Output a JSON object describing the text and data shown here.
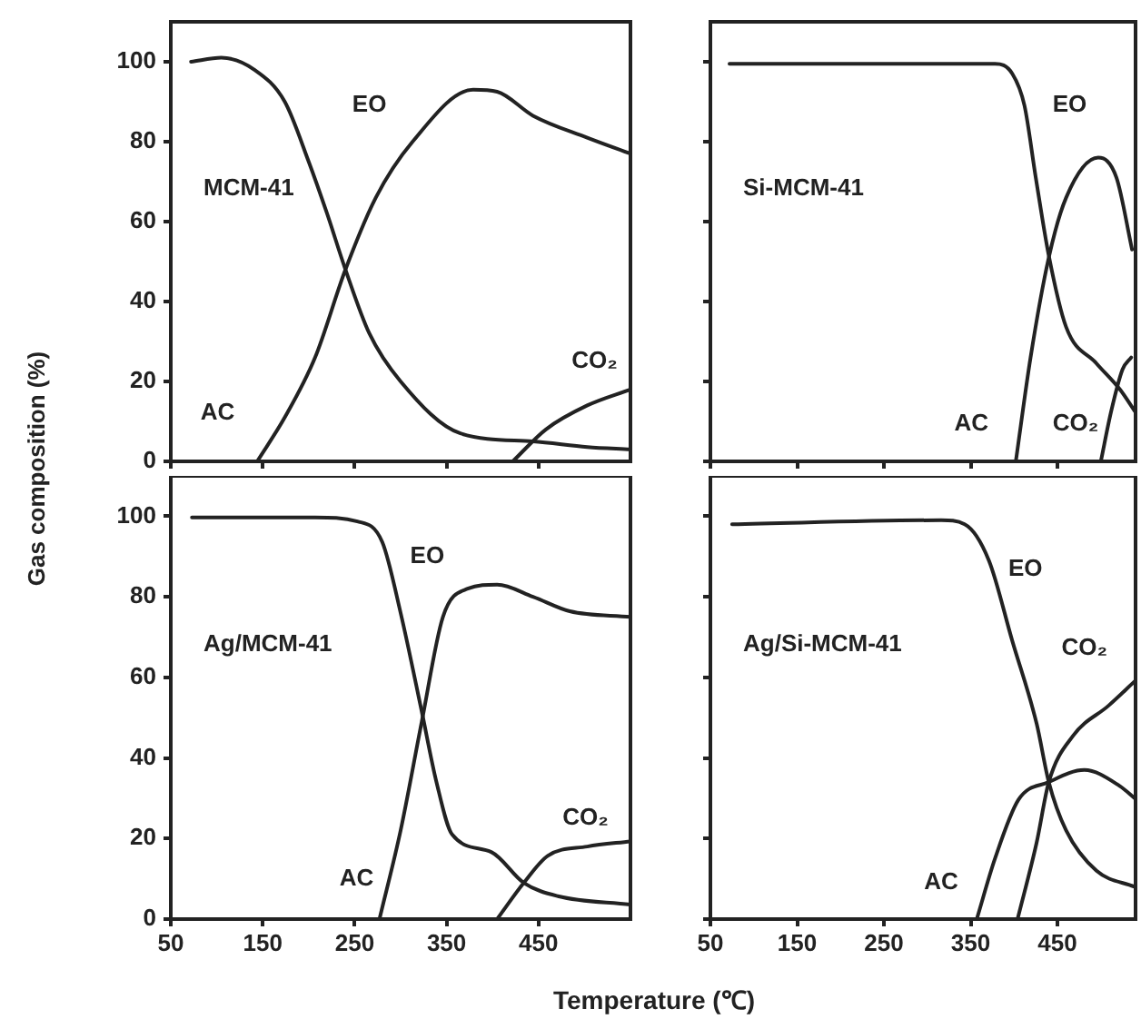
{
  "chart_data": [
    {
      "type": "line",
      "title": "MCM-41",
      "ylabel": "Gas composition (%)",
      "xlim": [
        50,
        550
      ],
      "ylim": [
        0,
        110
      ],
      "xticks": [
        50,
        150,
        250,
        350,
        450
      ],
      "yticks": [
        0,
        20,
        40,
        60,
        80,
        100
      ],
      "tick_labels": "y",
      "marker": "none",
      "series": [
        {
          "color": "#222222",
          "x": [
            72,
            105,
            141,
            174,
            200,
            220,
            240,
            266,
            300,
            365,
            444,
            503,
            550
          ],
          "values": [
            100,
            101,
            98,
            90,
            75,
            62,
            48,
            32,
            20,
            7,
            5,
            3.6,
            3
          ]
        },
        {
          "color": "#222222",
          "x": [
            144,
            174,
            207,
            240,
            273,
            313,
            379,
            405,
            444,
            503,
            550
          ],
          "values": [
            0,
            11,
            26,
            48,
            66,
            80,
            93,
            92.5,
            86.5,
            81,
            77
          ]
        },
        {
          "color": "#222222",
          "x": [
            422,
            458,
            503,
            550
          ],
          "values": [
            0,
            8,
            14,
            18
          ]
        }
      ],
      "annotations": [
        "EO",
        "AC",
        "CO₂"
      ]
    },
    {
      "type": "line",
      "title": "Si-MCM-41",
      "xlim": [
        50,
        540
      ],
      "ylim": [
        0,
        110
      ],
      "xticks": [
        50,
        150,
        250,
        350,
        450
      ],
      "yticks": [
        0,
        20,
        40,
        60,
        80,
        100
      ],
      "tick_labels": false,
      "marker": "none",
      "series": [
        {
          "color": "#222222",
          "x": [
            72,
            378,
            398,
            412,
            425,
            440,
            460,
            495,
            522,
            539
          ],
          "values": [
            99.5,
            99.5,
            97,
            89,
            71,
            51.5,
            33.6,
            24.5,
            18,
            12.6
          ]
        },
        {
          "color": "#222222",
          "x": [
            402,
            419,
            440,
            460,
            497,
            518,
            536
          ],
          "values": [
            0,
            26,
            51,
            66,
            76,
            71,
            53
          ]
        },
        {
          "color": "#222222",
          "x": [
            500,
            512,
            525,
            535
          ],
          "values": [
            0,
            12.6,
            23,
            26
          ]
        }
      ],
      "annotations": [
        "EO",
        "AC",
        "CO₂"
      ]
    },
    {
      "type": "line",
      "title": "Ag/MCM-41",
      "xlabel": "Temperature (℃)",
      "xlim": [
        50,
        550
      ],
      "ylim": [
        0,
        110
      ],
      "xticks": [
        50,
        150,
        250,
        350,
        450
      ],
      "yticks": [
        0,
        20,
        40,
        60,
        80,
        100
      ],
      "marker": "none",
      "series": [
        {
          "color": "#222222",
          "x": [
            73,
            207,
            253,
            280,
            300,
            323,
            339,
            356,
            399,
            434,
            471,
            550
          ],
          "values": [
            99.7,
            99.7,
            98.7,
            93.6,
            76,
            51.5,
            34,
            21,
            16.6,
            9,
            5.7,
            3.6
          ]
        },
        {
          "color": "#222222",
          "x": [
            277,
            300,
            323,
            346,
            373,
            405,
            444,
            484,
            550
          ],
          "values": [
            0,
            22,
            49,
            75,
            82,
            83,
            80,
            76.4,
            75
          ]
        },
        {
          "color": "#222222",
          "x": [
            405,
            434,
            460,
            503,
            550
          ],
          "values": [
            0,
            9,
            15.7,
            18,
            19.3
          ]
        }
      ],
      "annotations": [
        "EO",
        "AC",
        "CO₂"
      ]
    },
    {
      "type": "line",
      "title": "Ag/Si-MCM-41",
      "xlim": [
        50,
        540
      ],
      "ylim": [
        0,
        110
      ],
      "xticks": [
        50,
        150,
        250,
        350,
        450
      ],
      "yticks": [
        0,
        20,
        40,
        60,
        80,
        100
      ],
      "tick_labels": "x",
      "marker": "none",
      "series": [
        {
          "color": "#222222",
          "x": [
            75,
            316,
            343,
            371,
            398,
            426,
            440,
            460,
            495,
            539
          ],
          "values": [
            98,
            99,
            98,
            89,
            69,
            48.5,
            34,
            22,
            12,
            8
          ]
        },
        {
          "color": "#222222",
          "x": [
            357,
            378,
            405,
            440,
            481,
            522,
            539
          ],
          "values": [
            0,
            15,
            29.6,
            34,
            37,
            33,
            30
          ]
        },
        {
          "color": "#222222",
          "x": [
            404,
            426,
            440,
            468,
            509,
            539
          ],
          "values": [
            0,
            19,
            34,
            45.5,
            53,
            59
          ]
        }
      ],
      "annotations": [
        "EO",
        "AC",
        "CO₂"
      ]
    }
  ]
}
